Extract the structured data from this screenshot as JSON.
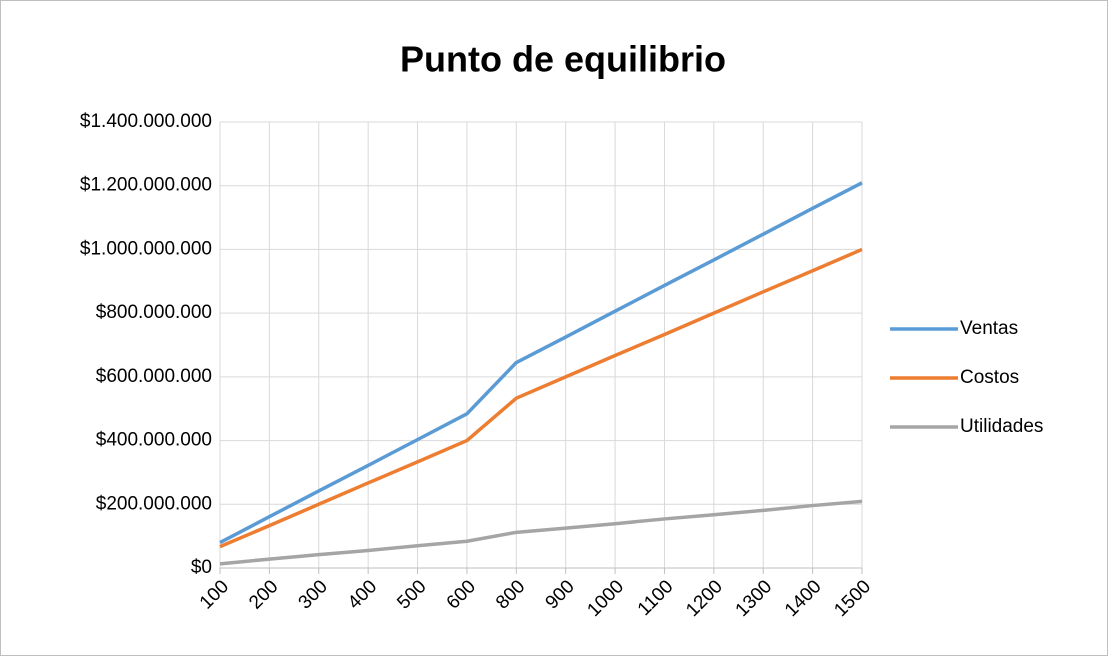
{
  "chart_data": {
    "type": "line",
    "title": "Punto de equilibrio",
    "categories": [
      "100",
      "200",
      "300",
      "400",
      "500",
      "600",
      "800",
      "900",
      "1000",
      "1100",
      "1200",
      "1300",
      "1400",
      "1500"
    ],
    "series": [
      {
        "name": "Ventas",
        "color": "#5b9bd5",
        "values": [
          80000000,
          161000000,
          242000000,
          322000000,
          403000000,
          484000000,
          645000000,
          725000000,
          806000000,
          887000000,
          967000000,
          1048000000,
          1129000000,
          1209000000
        ]
      },
      {
        "name": "Costos",
        "color": "#ed7d31",
        "values": [
          67000000,
          133000000,
          200000000,
          267000000,
          333000000,
          400000000,
          533000000,
          600000000,
          667000000,
          733000000,
          800000000,
          867000000,
          933000000,
          1000000000
        ]
      },
      {
        "name": "Utilidades",
        "color": "#a5a5a5",
        "values": [
          13000000,
          28000000,
          42000000,
          55000000,
          70000000,
          84000000,
          112000000,
          125000000,
          139000000,
          154000000,
          167000000,
          181000000,
          196000000,
          209000000
        ]
      }
    ],
    "ylim": [
      0,
      1400000000
    ],
    "yticks": [
      {
        "value": 0,
        "label": "$0"
      },
      {
        "value": 200000000,
        "label": "$200.000.000"
      },
      {
        "value": 400000000,
        "label": "$400.000.000"
      },
      {
        "value": 600000000,
        "label": "$600.000.000"
      },
      {
        "value": 800000000,
        "label": "$800.000.000"
      },
      {
        "value": 1000000000,
        "label": "$1.000.000.000"
      },
      {
        "value": 1200000000,
        "label": "$1.200.000.000"
      },
      {
        "value": 1400000000,
        "label": "$1.400.000.000"
      }
    ],
    "grid": true,
    "legend": "right"
  }
}
